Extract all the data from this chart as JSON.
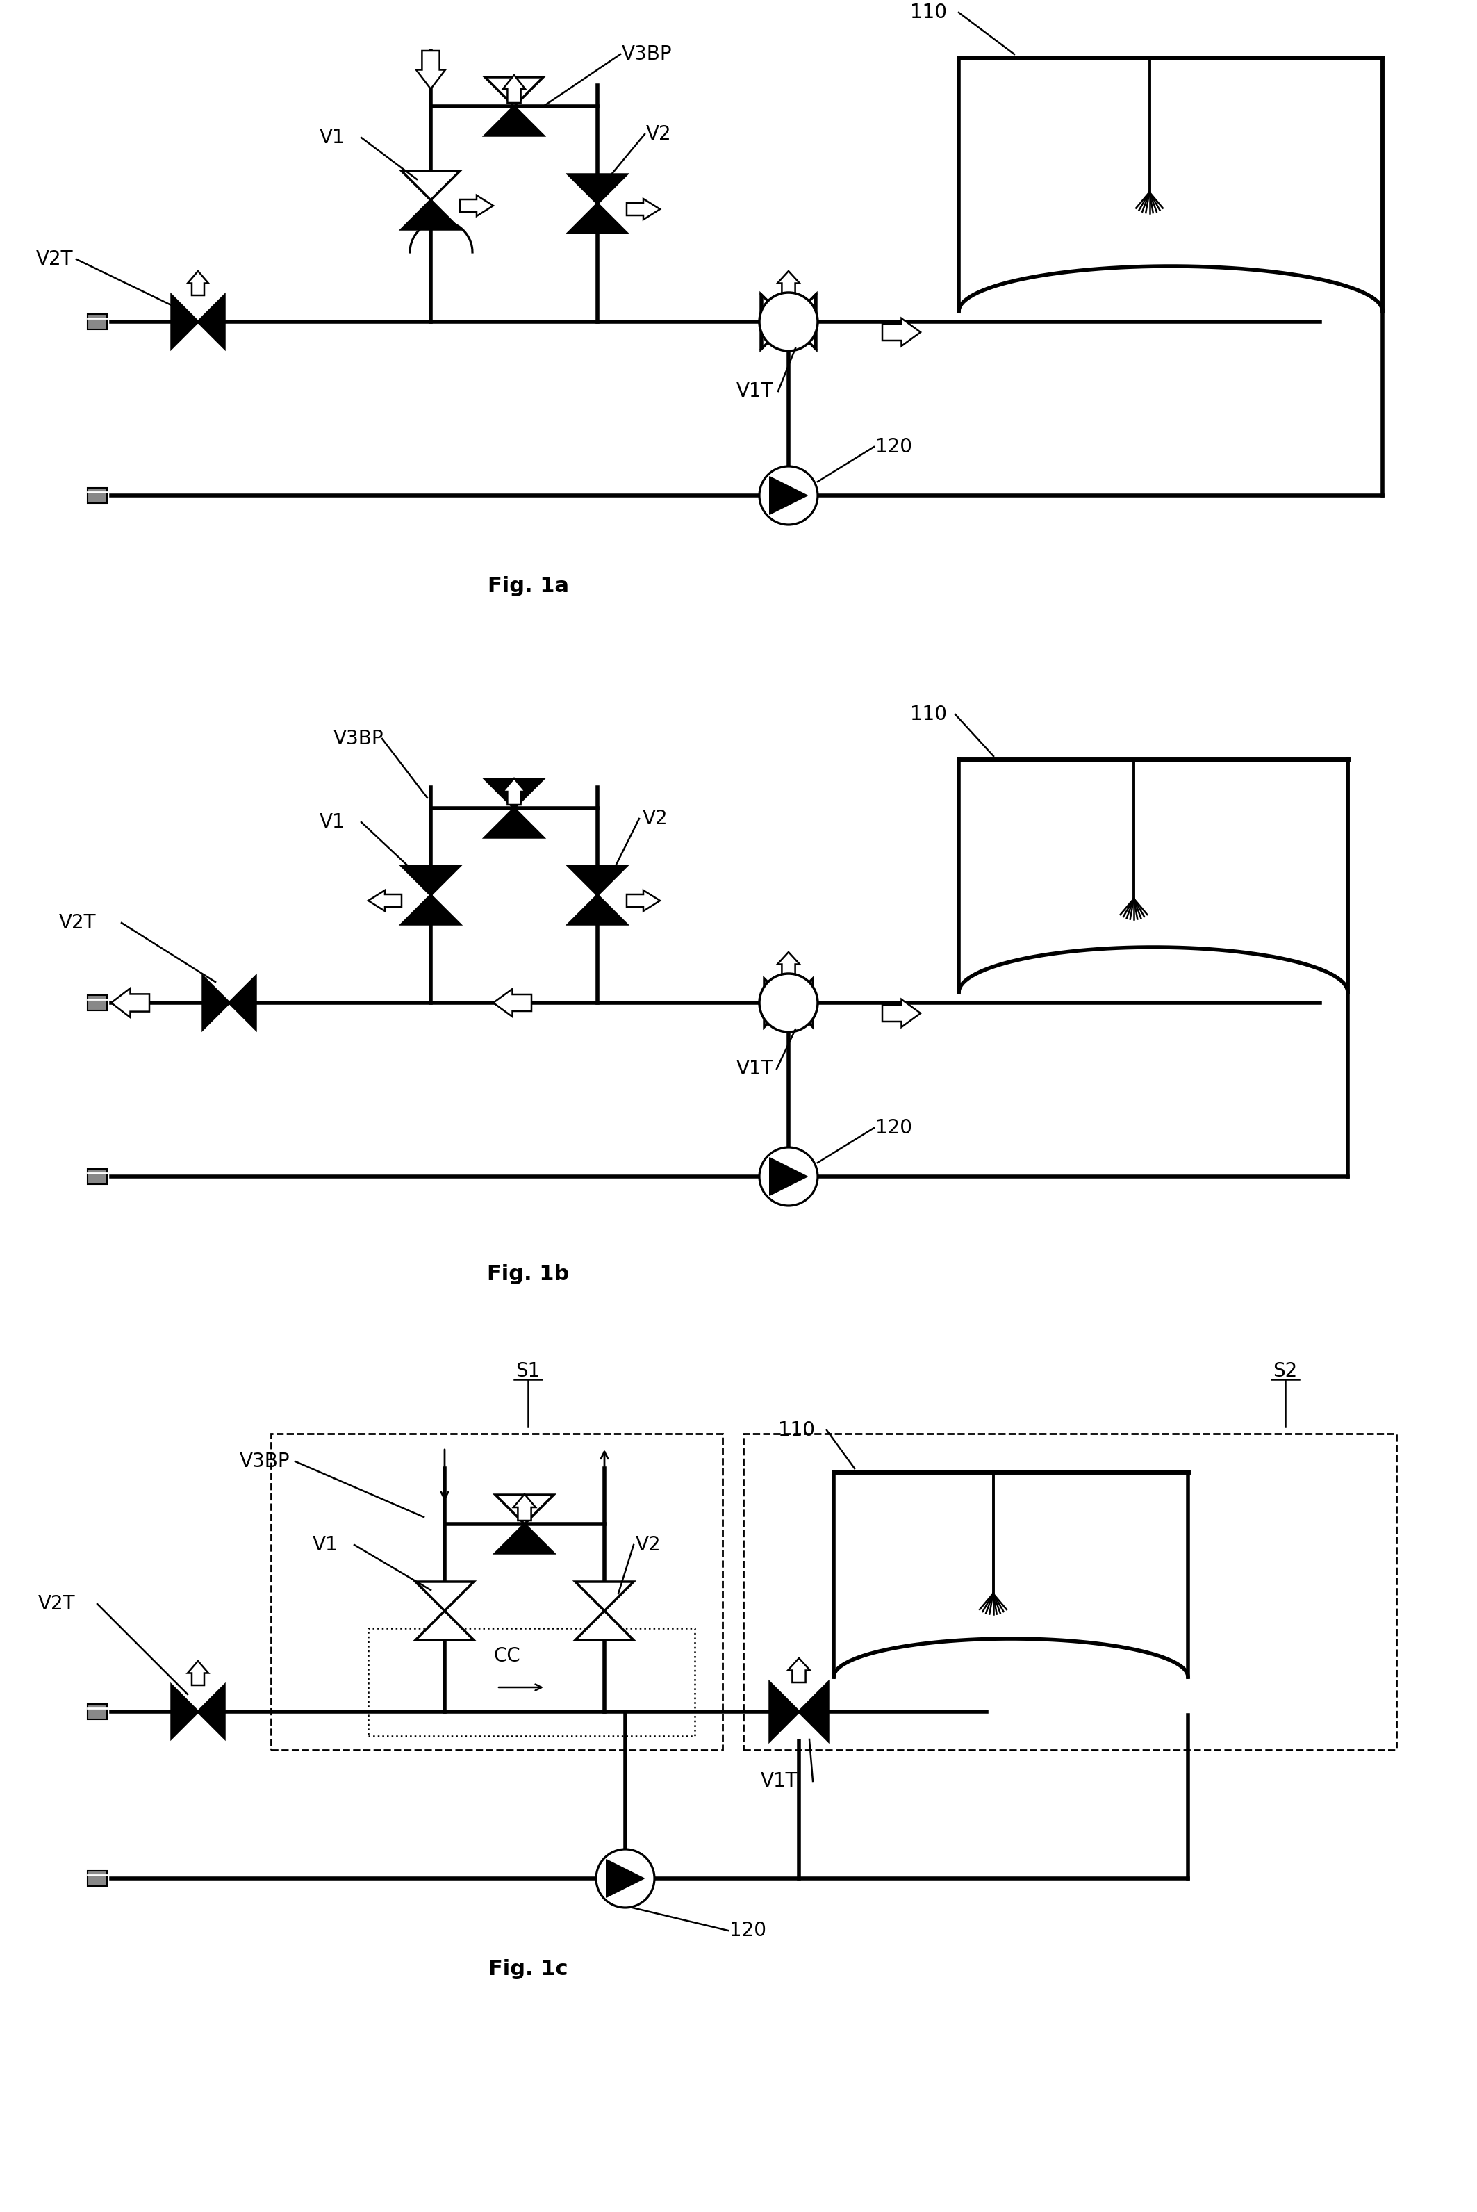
{
  "bg_color": "#ffffff",
  "line_color": "#000000",
  "fig_width": 21.26,
  "fig_height": 31.83,
  "lw_pipe": 4.0,
  "lw_valve": 2.5,
  "lw_thin": 1.8,
  "fs_label": 20,
  "fs_fig": 22,
  "diagrams": [
    "Fig. 1a",
    "Fig. 1b",
    "Fig. 1c"
  ]
}
